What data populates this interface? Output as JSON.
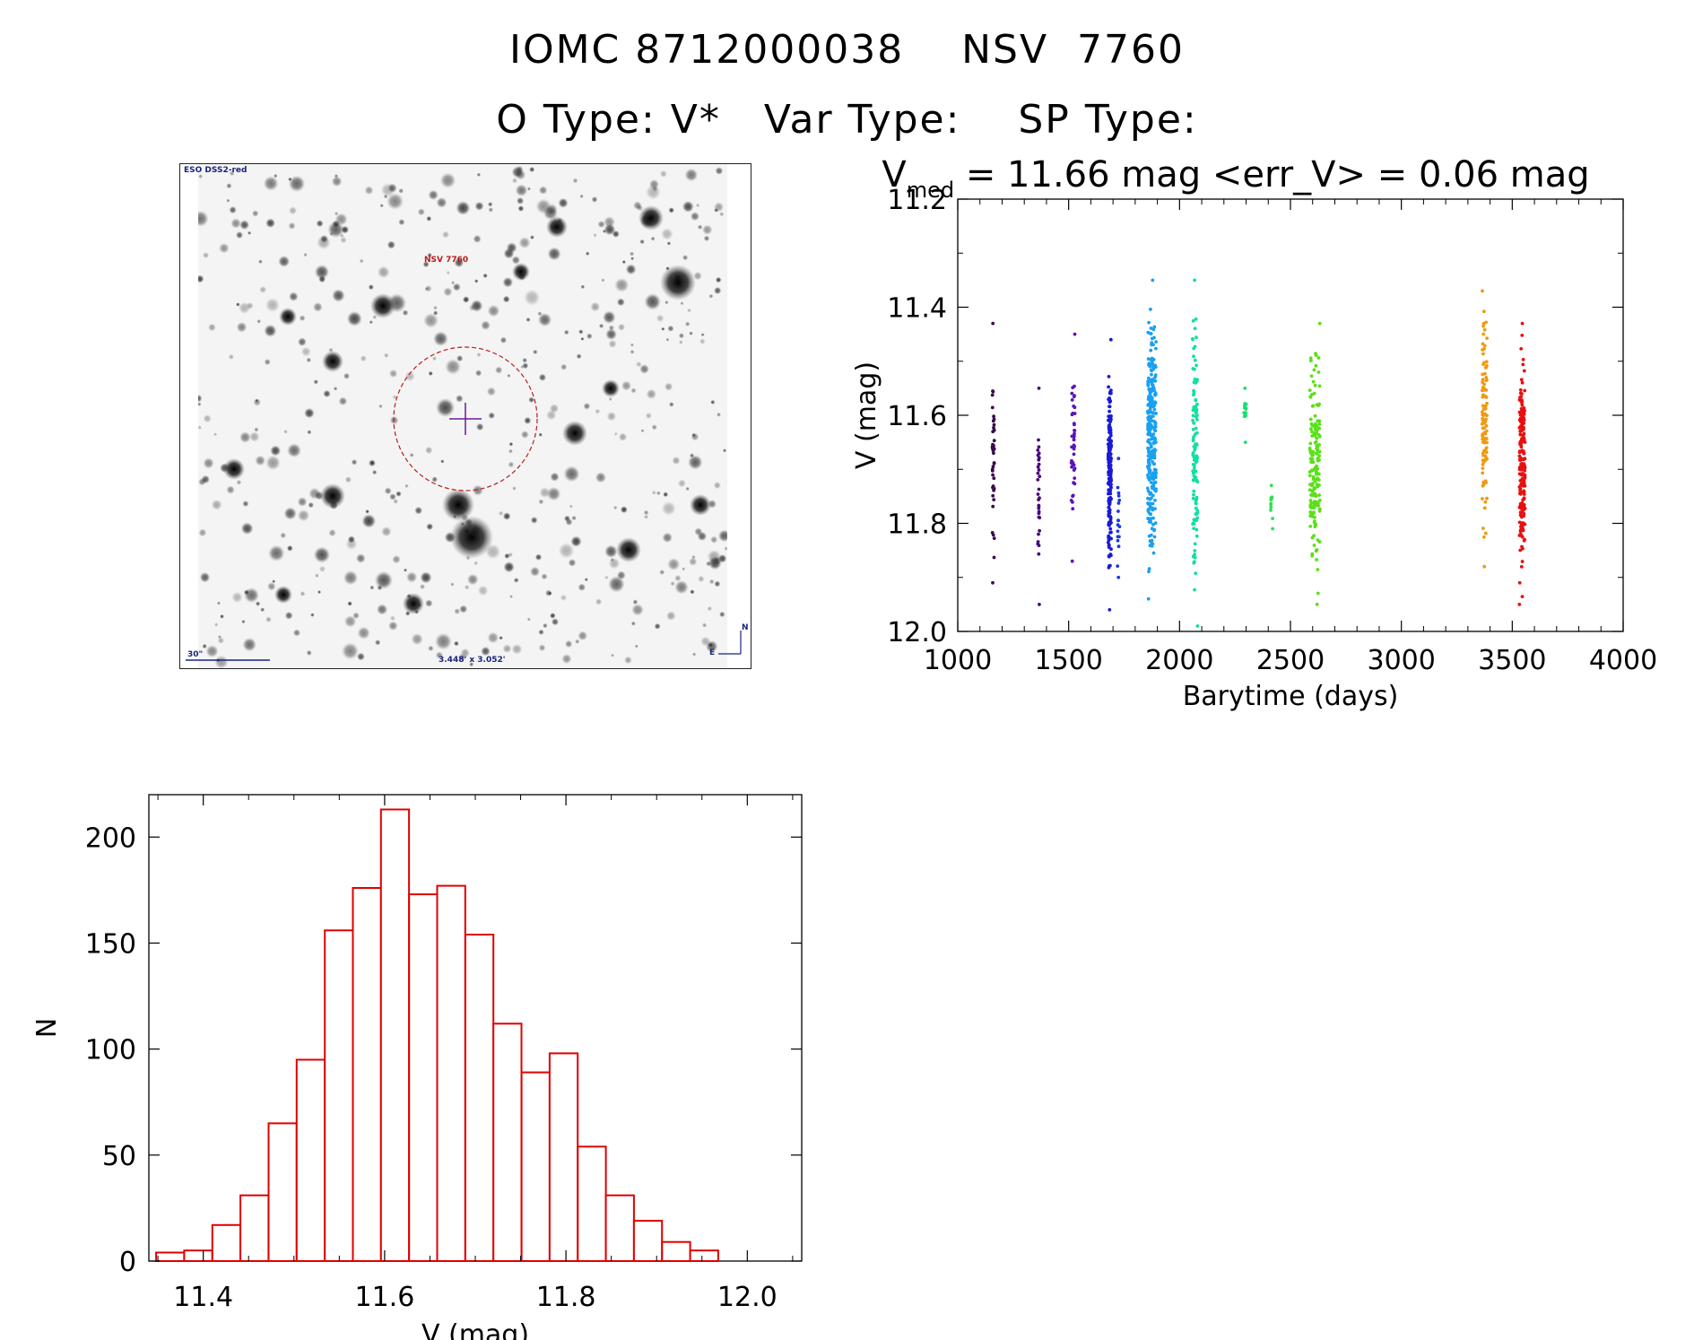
{
  "header": {
    "line1": "IOMC 8712000038    NSV  7760",
    "line2": "O Type: V*   Var Type:    SP Type:"
  },
  "sky_image": {
    "survey_label": "ESO DSS2-red",
    "target_label": "NSV 7760",
    "scale_label": "30\"",
    "size_label": "3.448' x 3.052'",
    "north_label": "N",
    "east_label": "E",
    "stroke_color": "#1a237e",
    "target_color": "#b71c1c"
  },
  "chart_data": [
    {
      "type": "scatter",
      "title_main": "V",
      "title_sub": "med",
      "title_rest": " = 11.66 mag <err_V> = 0.06 mag",
      "xlabel": "Barytime (days)",
      "ylabel": "V (mag)",
      "xlim": [
        1000,
        4000
      ],
      "ylim": [
        11.2,
        12.0
      ],
      "y_reversed": true,
      "xticks": [
        1000,
        1500,
        2000,
        2500,
        3000,
        3500,
        4000
      ],
      "yticks": [
        11.2,
        11.4,
        11.6,
        11.8,
        12.0
      ],
      "ytick_labels": [
        "11.2",
        "11.4",
        "11.6",
        "11.8",
        "12.0"
      ],
      "color_scale": "rainbow by time",
      "clusters": [
        {
          "x": 1160,
          "width": 10,
          "y_min": 11.43,
          "y_max": 11.91,
          "n": 40,
          "color": "#3a0a4a"
        },
        {
          "x": 1365,
          "width": 8,
          "y_min": 11.55,
          "y_max": 11.95,
          "n": 32,
          "color": "#4a0a7a"
        },
        {
          "x": 1520,
          "width": 16,
          "y_min": 11.45,
          "y_max": 11.87,
          "n": 45,
          "color": "#5a14b8"
        },
        {
          "x": 1685,
          "width": 14,
          "y_min": 11.46,
          "y_max": 11.96,
          "n": 170,
          "color": "#1a1ad8"
        },
        {
          "x": 1725,
          "width": 10,
          "y_min": 11.68,
          "y_max": 11.9,
          "n": 18,
          "color": "#1a3ae0"
        },
        {
          "x": 1875,
          "width": 38,
          "y_min": 11.35,
          "y_max": 11.94,
          "n": 300,
          "color": "#1aa0f0"
        },
        {
          "x": 2070,
          "width": 22,
          "y_min": 11.35,
          "y_max": 11.99,
          "n": 120,
          "color": "#10e0a0"
        },
        {
          "x": 2295,
          "width": 10,
          "y_min": 11.55,
          "y_max": 11.65,
          "n": 14,
          "color": "#18e070"
        },
        {
          "x": 2415,
          "width": 10,
          "y_min": 11.73,
          "y_max": 11.81,
          "n": 12,
          "color": "#30e050"
        },
        {
          "x": 2610,
          "width": 46,
          "y_min": 11.43,
          "y_max": 11.95,
          "n": 170,
          "color": "#5ae018"
        },
        {
          "x": 3375,
          "width": 22,
          "y_min": 11.37,
          "y_max": 11.88,
          "n": 110,
          "color": "#f09a10"
        },
        {
          "x": 3545,
          "width": 26,
          "y_min": 11.43,
          "y_max": 11.95,
          "n": 210,
          "color": "#e81010"
        }
      ]
    },
    {
      "type": "bar",
      "subtype": "histogram",
      "xlabel": "V (mag)",
      "ylabel": "N",
      "xlim": [
        11.34,
        12.06
      ],
      "ylim": [
        0,
        220
      ],
      "xticks": [
        11.4,
        11.6,
        11.8,
        12.0
      ],
      "xtick_labels": [
        "11.4",
        "11.6",
        "11.8",
        "12.0"
      ],
      "yticks": [
        0,
        50,
        100,
        150,
        200
      ],
      "bin_width": 0.031,
      "bin_start": 11.348,
      "values": [
        4,
        5,
        17,
        31,
        65,
        95,
        156,
        176,
        213,
        173,
        177,
        154,
        112,
        89,
        98,
        54,
        31,
        19,
        9,
        5
      ],
      "bar_color": "#e00000"
    }
  ]
}
